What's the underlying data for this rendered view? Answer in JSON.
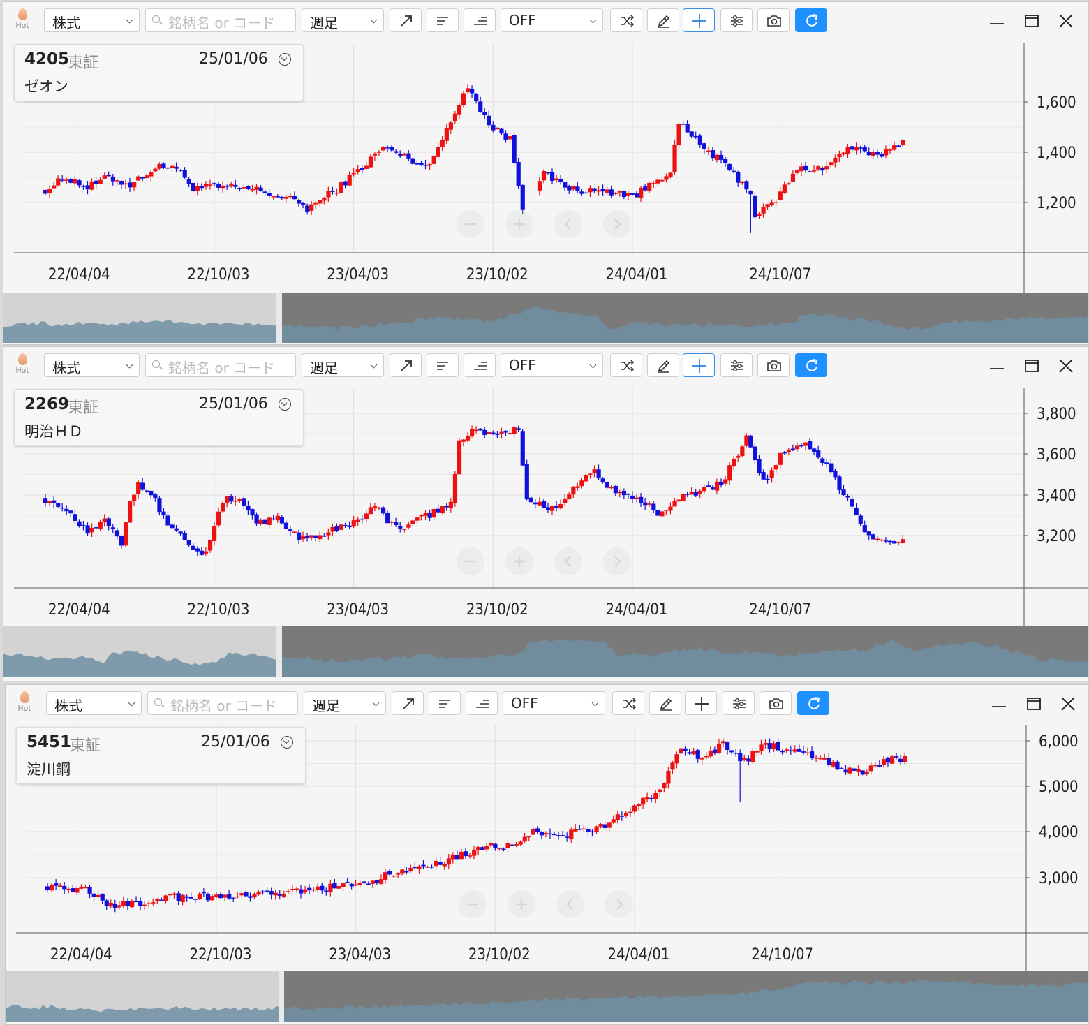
{
  "toolbar": {
    "hot_label": "Hot",
    "market_type": "株式",
    "search_placeholder": "銘柄名 or コード",
    "period": "週足",
    "indicator": "OFF"
  },
  "icons": [
    "hot-flame-icon",
    "trend-line-icon",
    "align-left-icon",
    "align-right-icon",
    "shuffle-icon",
    "pencil-icon",
    "crosshair-icon",
    "settings-sliders-icon",
    "camera-icon",
    "refresh-icon",
    "minimize-icon",
    "maximize-icon",
    "close-icon",
    "zoom-out-icon",
    "zoom-in-icon",
    "scroll-left-icon",
    "scroll-right-icon"
  ],
  "colors": {
    "up": "#ee1111",
    "down": "#1111dd",
    "accent": "#1e90ff",
    "navigator_fill": "#6f8fa3"
  },
  "x_axis_labels": [
    "22/04/04",
    "22/10/03",
    "23/04/03",
    "23/10/02",
    "24/04/01",
    "24/10/07"
  ],
  "charts": [
    {
      "code": "4205",
      "exchange": "東証",
      "date": "25/01/06",
      "name": "ゼオン",
      "crosshair_active": true,
      "chart_data": {
        "type": "candlestick",
        "y_ticks": [
          "1,200",
          "1,400",
          "1,600"
        ],
        "ylim": [
          1060,
          1870
        ],
        "start": 1300,
        "anchors": [
          [
            0,
            1300
          ],
          [
            5,
            1350
          ],
          [
            10,
            1310
          ],
          [
            15,
            1350
          ],
          [
            20,
            1320
          ],
          [
            25,
            1380
          ],
          [
            30,
            1400
          ],
          [
            35,
            1310
          ],
          [
            40,
            1310
          ],
          [
            50,
            1300
          ],
          [
            60,
            1250
          ],
          [
            62,
            1225
          ],
          [
            68,
            1290
          ],
          [
            75,
            1390
          ],
          [
            80,
            1470
          ],
          [
            85,
            1430
          ],
          [
            90,
            1390
          ],
          [
            95,
            1530
          ],
          [
            100,
            1720
          ],
          [
            105,
            1560
          ],
          [
            110,
            1500
          ],
          [
            113,
            1230
          ],
          [
            118,
            1360
          ],
          [
            125,
            1300
          ],
          [
            135,
            1290
          ],
          [
            140,
            1280
          ],
          [
            148,
            1380
          ],
          [
            150,
            1560
          ],
          [
            155,
            1480
          ],
          [
            162,
            1380
          ],
          [
            167,
            1290
          ],
          [
            168,
            1200
          ],
          [
            172,
            1240
          ],
          [
            178,
            1380
          ],
          [
            185,
            1390
          ],
          [
            190,
            1470
          ],
          [
            197,
            1430
          ],
          [
            200,
            1470
          ],
          [
            203,
            1490
          ]
        ],
        "x_ticks": [
          {
            "label": "22/04/04",
            "i": 7
          },
          {
            "label": "22/10/03",
            "i": 40
          },
          {
            "label": "23/04/03",
            "i": 73
          },
          {
            "label": "23/10/02",
            "i": 106
          },
          {
            "label": "24/04/01",
            "i": 139
          },
          {
            "label": "24/10/07",
            "i": 173
          }
        ],
        "gap": [
          114,
          116
        ],
        "special": [
          [
            167,
            1130,
            1270
          ]
        ]
      }
    },
    {
      "code": "2269",
      "exchange": "東証",
      "date": "25/01/06",
      "name": "明治ＨＤ",
      "crosshair_active": true,
      "chart_data": {
        "type": "candlestick",
        "y_ticks": [
          "3,200",
          "3,400",
          "3,600",
          "3,800"
        ],
        "ylim": [
          2980,
          3880
        ],
        "start": 3380,
        "anchors": [
          [
            0,
            3380
          ],
          [
            5,
            3330
          ],
          [
            10,
            3230
          ],
          [
            14,
            3290
          ],
          [
            18,
            3180
          ],
          [
            20,
            3370
          ],
          [
            22,
            3460
          ],
          [
            26,
            3370
          ],
          [
            30,
            3240
          ],
          [
            35,
            3160
          ],
          [
            38,
            3120
          ],
          [
            42,
            3370
          ],
          [
            46,
            3390
          ],
          [
            50,
            3270
          ],
          [
            55,
            3290
          ],
          [
            60,
            3200
          ],
          [
            66,
            3220
          ],
          [
            72,
            3260
          ],
          [
            78,
            3350
          ],
          [
            82,
            3260
          ],
          [
            86,
            3260
          ],
          [
            92,
            3320
          ],
          [
            96,
            3360
          ],
          [
            98,
            3650
          ],
          [
            102,
            3700
          ],
          [
            107,
            3680
          ],
          [
            112,
            3710
          ],
          [
            114,
            3380
          ],
          [
            120,
            3330
          ],
          [
            125,
            3440
          ],
          [
            130,
            3510
          ],
          [
            135,
            3400
          ],
          [
            140,
            3380
          ],
          [
            145,
            3320
          ],
          [
            150,
            3390
          ],
          [
            155,
            3420
          ],
          [
            160,
            3450
          ],
          [
            166,
            3670
          ],
          [
            170,
            3460
          ],
          [
            174,
            3580
          ],
          [
            180,
            3630
          ],
          [
            185,
            3530
          ],
          [
            190,
            3380
          ],
          [
            195,
            3210
          ],
          [
            200,
            3180
          ],
          [
            203,
            3200
          ]
        ],
        "x_ticks": [
          {
            "label": "22/04/04",
            "i": 7
          },
          {
            "label": "22/10/03",
            "i": 40
          },
          {
            "label": "23/04/03",
            "i": 73
          },
          {
            "label": "23/10/02",
            "i": 106
          },
          {
            "label": "24/04/01",
            "i": 139
          },
          {
            "label": "24/10/07",
            "i": 173
          }
        ],
        "gap": [],
        "special": []
      }
    },
    {
      "code": "5451",
      "exchange": "東証",
      "date": "25/01/06",
      "name": "淀川鋼",
      "crosshair_active": false,
      "chart_data": {
        "type": "candlestick",
        "y_ticks": [
          "3,000",
          "4,000",
          "5,000",
          "6,000"
        ],
        "ylim": [
          1760,
          6200
        ],
        "start": 2740,
        "anchors": [
          [
            0,
            2740
          ],
          [
            10,
            2620
          ],
          [
            15,
            2310
          ],
          [
            20,
            2330
          ],
          [
            25,
            2450
          ],
          [
            35,
            2520
          ],
          [
            45,
            2480
          ],
          [
            55,
            2570
          ],
          [
            65,
            2690
          ],
          [
            70,
            2720
          ],
          [
            75,
            2740
          ],
          [
            80,
            2960
          ],
          [
            90,
            3230
          ],
          [
            95,
            3330
          ],
          [
            100,
            3500
          ],
          [
            105,
            3640
          ],
          [
            110,
            3640
          ],
          [
            115,
            3980
          ],
          [
            120,
            3830
          ],
          [
            125,
            3920
          ],
          [
            130,
            3980
          ],
          [
            135,
            4240
          ],
          [
            140,
            4600
          ],
          [
            145,
            4850
          ],
          [
            150,
            5750
          ],
          [
            155,
            5600
          ],
          [
            160,
            5860
          ],
          [
            165,
            5500
          ],
          [
            170,
            5860
          ],
          [
            175,
            5750
          ],
          [
            180,
            5700
          ],
          [
            185,
            5480
          ],
          [
            190,
            5290
          ],
          [
            193,
            5230
          ],
          [
            196,
            5430
          ],
          [
            200,
            5540
          ],
          [
            203,
            5540
          ]
        ],
        "x_ticks": [
          {
            "label": "22/04/04",
            "i": 7
          },
          {
            "label": "22/10/03",
            "i": 40
          },
          {
            "label": "23/04/03",
            "i": 73
          },
          {
            "label": "23/10/02",
            "i": 106
          },
          {
            "label": "24/04/01",
            "i": 139
          },
          {
            "label": "24/10/07",
            "i": 173
          }
        ],
        "gap": [],
        "special": [
          [
            164,
            4600,
            5350
          ]
        ]
      }
    }
  ]
}
